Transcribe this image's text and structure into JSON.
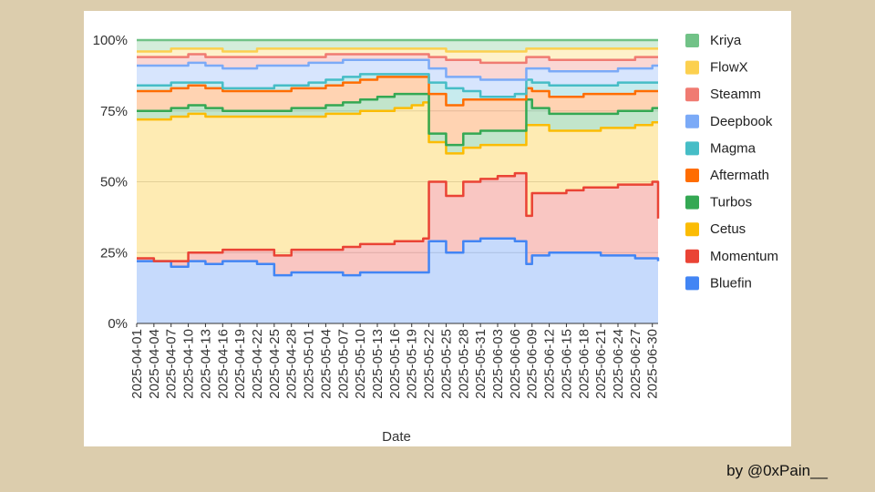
{
  "footer": {
    "credit": "by @0xPain__"
  },
  "chart_data": {
    "type": "area",
    "stacked": true,
    "normalized": true,
    "xlabel": "Date",
    "ylabel": "",
    "ylim": [
      0,
      100
    ],
    "y_ticks": [
      "0%",
      "25%",
      "50%",
      "75%",
      "100%"
    ],
    "x_ticks": [
      "2025-04-01",
      "2025-04-04",
      "2025-04-07",
      "2025-04-10",
      "2025-04-13",
      "2025-04-16",
      "2025-04-19",
      "2025-04-22",
      "2025-04-25",
      "2025-04-28",
      "2025-05-01",
      "2025-05-04",
      "2025-05-07",
      "2025-05-10",
      "2025-05-13",
      "2025-05-16",
      "2025-05-19",
      "2025-05-22",
      "2025-05-25",
      "2025-05-28",
      "2025-05-31",
      "2025-06-03",
      "2025-06-06",
      "2025-06-09",
      "2025-06-12",
      "2025-06-15",
      "2025-06-18",
      "2025-06-21",
      "2025-06-24",
      "2025-06-27",
      "2025-06-30"
    ],
    "grid": true,
    "legend_position": "right",
    "x": [
      "2025-04-01",
      "2025-04-04",
      "2025-04-07",
      "2025-04-10",
      "2025-04-13",
      "2025-04-16",
      "2025-04-19",
      "2025-04-22",
      "2025-04-25",
      "2025-04-28",
      "2025-05-01",
      "2025-05-04",
      "2025-05-07",
      "2025-05-10",
      "2025-05-13",
      "2025-05-16",
      "2025-05-19",
      "2025-05-21",
      "2025-05-22",
      "2025-05-25",
      "2025-05-28",
      "2025-05-31",
      "2025-06-03",
      "2025-06-06",
      "2025-06-07",
      "2025-06-08",
      "2025-06-09",
      "2025-06-12",
      "2025-06-15",
      "2025-06-18",
      "2025-06-21",
      "2025-06-24",
      "2025-06-27",
      "2025-06-30",
      "2025-07-01"
    ],
    "series": [
      {
        "name": "Bluefin",
        "color": "#4285f4",
        "cumulative": [
          22,
          22,
          20,
          22,
          21,
          22,
          22,
          21,
          17,
          18,
          18,
          18,
          17,
          18,
          18,
          18,
          18,
          18,
          29,
          25,
          29,
          30,
          30,
          29,
          29,
          21,
          24,
          25,
          25,
          25,
          24,
          24,
          23,
          23,
          22
        ]
      },
      {
        "name": "Momentum",
        "color": "#ea4335",
        "cumulative": [
          23,
          22,
          22,
          25,
          25,
          26,
          26,
          26,
          24,
          26,
          26,
          26,
          27,
          28,
          28,
          29,
          29,
          30,
          50,
          45,
          50,
          51,
          52,
          53,
          53,
          38,
          46,
          46,
          47,
          48,
          48,
          49,
          49,
          50,
          37
        ]
      },
      {
        "name": "Cetus",
        "color": "#fbbc04",
        "cumulative": [
          72,
          72,
          73,
          74,
          73,
          73,
          73,
          73,
          73,
          73,
          73,
          74,
          74,
          75,
          75,
          76,
          77,
          78,
          64,
          60,
          62,
          63,
          63,
          63,
          63,
          70,
          70,
          68,
          68,
          68,
          69,
          69,
          70,
          71,
          71
        ]
      },
      {
        "name": "Turbos",
        "color": "#34a853",
        "cumulative": [
          75,
          75,
          76,
          77,
          76,
          75,
          75,
          75,
          75,
          76,
          76,
          77,
          78,
          79,
          80,
          81,
          81,
          81,
          67,
          63,
          67,
          68,
          68,
          68,
          68,
          79,
          76,
          74,
          74,
          74,
          74,
          75,
          75,
          76,
          76
        ]
      },
      {
        "name": "Aftermath",
        "color": "#ff6d01",
        "cumulative": [
          82,
          82,
          83,
          84,
          83,
          82,
          82,
          82,
          82,
          83,
          83,
          84,
          85,
          86,
          87,
          87,
          87,
          87,
          81,
          77,
          79,
          79,
          79,
          79,
          79,
          83,
          82,
          80,
          80,
          81,
          81,
          81,
          82,
          82,
          82
        ]
      },
      {
        "name": "Magma",
        "color": "#46bdc6",
        "cumulative": [
          84,
          84,
          85,
          85,
          85,
          83,
          83,
          83,
          84,
          84,
          85,
          86,
          87,
          88,
          88,
          88,
          88,
          88,
          85,
          83,
          82,
          80,
          80,
          81,
          81,
          86,
          85,
          84,
          84,
          84,
          84,
          85,
          85,
          85,
          85
        ]
      },
      {
        "name": "Deepbook",
        "color": "#7baaf7",
        "cumulative": [
          91,
          91,
          91,
          92,
          91,
          90,
          90,
          91,
          91,
          91,
          92,
          92,
          93,
          93,
          93,
          93,
          93,
          93,
          90,
          87,
          87,
          86,
          86,
          86,
          86,
          90,
          90,
          89,
          89,
          89,
          89,
          90,
          90,
          91,
          91
        ]
      },
      {
        "name": "Steamm",
        "color": "#f07b72",
        "cumulative": [
          94,
          94,
          94,
          95,
          94,
          94,
          94,
          94,
          94,
          94,
          94,
          95,
          95,
          95,
          95,
          95,
          95,
          95,
          94,
          93,
          93,
          92,
          92,
          92,
          92,
          94,
          94,
          93,
          93,
          93,
          93,
          93,
          94,
          94,
          94
        ]
      },
      {
        "name": "FlowX",
        "color": "#fcd04f",
        "cumulative": [
          96,
          96,
          97,
          97,
          97,
          96,
          96,
          97,
          97,
          97,
          97,
          97,
          97,
          97,
          97,
          97,
          97,
          97,
          97,
          96,
          96,
          96,
          96,
          96,
          96,
          97,
          97,
          97,
          97,
          97,
          97,
          97,
          97,
          97,
          97
        ]
      },
      {
        "name": "Kriya",
        "color": "#71c287",
        "cumulative": [
          100,
          100,
          100,
          100,
          100,
          100,
          100,
          100,
          100,
          100,
          100,
          100,
          100,
          100,
          100,
          100,
          100,
          100,
          100,
          100,
          100,
          100,
          100,
          100,
          100,
          100,
          100,
          100,
          100,
          100,
          100,
          100,
          100,
          100,
          100
        ]
      }
    ]
  }
}
